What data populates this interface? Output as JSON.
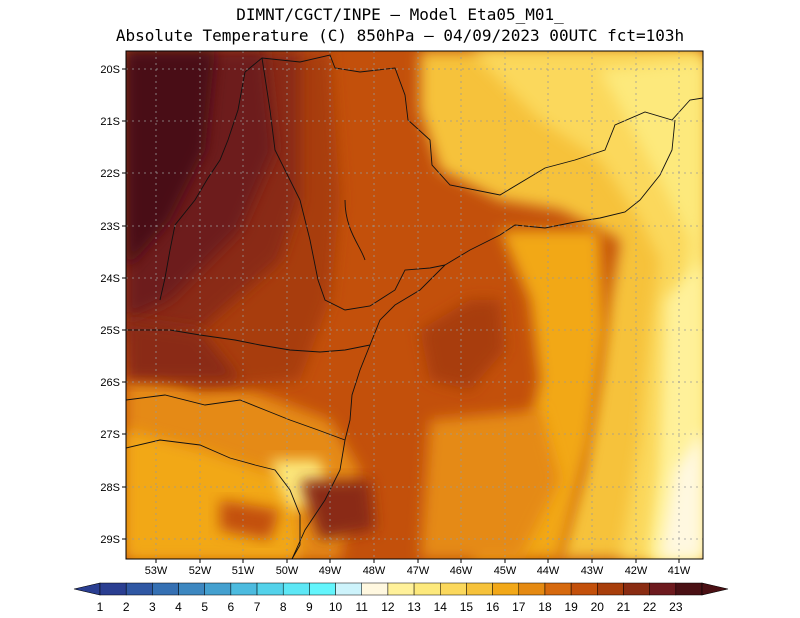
{
  "header": {
    "line1": "DIMNT/CGCT/INPE –  Model Eta05_M01_",
    "line2": "Absolute Temperature (C) 850hPa –  04/09/2023 00UTC fct=103h"
  },
  "map": {
    "lat_labels": [
      "20S",
      "21S",
      "22S",
      "23S",
      "24S",
      "25S",
      "26S",
      "27S",
      "28S",
      "29S"
    ],
    "lon_labels": [
      "53W",
      "52W",
      "51W",
      "50W",
      "49W",
      "48W",
      "47W",
      "46W",
      "45W",
      "44W",
      "43W",
      "42W",
      "41W"
    ]
  },
  "colorbar": {
    "labels": [
      "1",
      "2",
      "3",
      "4",
      "5",
      "6",
      "7",
      "8",
      "9",
      "10",
      "11",
      "12",
      "13",
      "14",
      "15",
      "16",
      "17",
      "18",
      "19",
      "20",
      "21",
      "22",
      "23"
    ],
    "colors": [
      "#2a3e91",
      "#2f57a3",
      "#3570b3",
      "#3d87c0",
      "#44a0cf",
      "#4cbbdf",
      "#53d2ea",
      "#5de7f5",
      "#63f5fc",
      "#cdf3fb",
      "#fff8e0",
      "#fff19a",
      "#fde97c",
      "#fbd85c",
      "#f6c23a",
      "#f2a818",
      "#e58a12",
      "#d6690e",
      "#c3500b",
      "#a83e0b",
      "#8a2c12",
      "#6d1a1e",
      "#4a1014"
    ],
    "under_color": "#2a3e91",
    "over_color": "#4a1014"
  }
}
